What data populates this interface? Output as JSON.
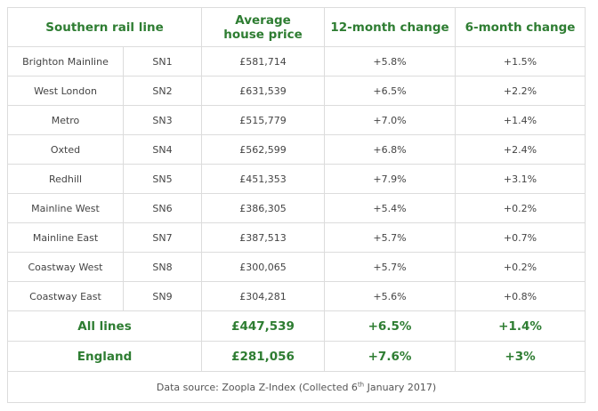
{
  "headers": {
    "line": "Southern rail line",
    "price_l1": "Average",
    "price_l2": "house price",
    "m12": "12-month change",
    "m6": "6-month change"
  },
  "rows": [
    {
      "line": "Brighton Mainline",
      "code": "SN1",
      "price": "£581,714",
      "m12": "+5.8%",
      "m6": "+1.5%"
    },
    {
      "line": "West London",
      "code": "SN2",
      "price": "£631,539",
      "m12": "+6.5%",
      "m6": "+2.2%"
    },
    {
      "line": "Metro",
      "code": "SN3",
      "price": "£515,779",
      "m12": "+7.0%",
      "m6": "+1.4%"
    },
    {
      "line": "Oxted",
      "code": "SN4",
      "price": "£562,599",
      "m12": "+6.8%",
      "m6": "+2.4%"
    },
    {
      "line": "Redhill",
      "code": "SN5",
      "price": "£451,353",
      "m12": "+7.9%",
      "m6": "+3.1%"
    },
    {
      "line": "Mainline West",
      "code": "SN6",
      "price": "£386,305",
      "m12": "+5.4%",
      "m6": "+0.2%"
    },
    {
      "line": "Mainline East",
      "code": "SN7",
      "price": "£387,513",
      "m12": "+5.7%",
      "m6": "+0.7%"
    },
    {
      "line": "Coastway West",
      "code": "SN8",
      "price": "£300,065",
      "m12": "+5.7%",
      "m6": "+0.2%"
    },
    {
      "line": "Coastway East",
      "code": "SN9",
      "price": "£304,281",
      "m12": "+5.6%",
      "m6": "+0.8%"
    }
  ],
  "summary": [
    {
      "label": "All lines",
      "price": "£447,539",
      "m12": "+6.5%",
      "m6": "+1.4%"
    },
    {
      "label": "England",
      "price": "£281,056",
      "m12": "+7.6%",
      "m6": "+3%"
    }
  ],
  "source": {
    "prefix": "Data source: Zoopla Z-Index (Collected 6",
    "sup": "th",
    "suffix": " January 2017)"
  },
  "colors": {
    "header_green": "#2e7d32",
    "border": "#dcdcdc",
    "text": "#444444"
  }
}
